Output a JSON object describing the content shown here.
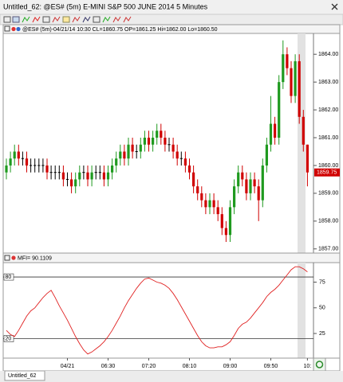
{
  "window": {
    "title": "Untitled_62: @ES# (5m) E-MINI S&P 500 JUNE 2014 5 Minutes"
  },
  "tab": "Untitled_62",
  "chart_data": [
    {
      "type": "candlestick",
      "header": "@ES# (5m)-04/21/14 10:30 CL=1860.75 OP=1861.25 Hi=1862.00 Lo=1860.50",
      "categories": [
        null,
        null,
        null,
        null,
        null,
        null,
        null,
        null,
        null,
        null,
        null,
        null,
        null,
        null,
        null,
        "04/21",
        null,
        null,
        null,
        null,
        null,
        null,
        null,
        null,
        null,
        "06:30",
        null,
        null,
        null,
        null,
        null,
        null,
        null,
        null,
        null,
        "07:20",
        null,
        null,
        null,
        null,
        null,
        null,
        null,
        null,
        null,
        "08:10",
        null,
        null,
        null,
        null,
        null,
        null,
        null,
        null,
        null,
        "09:00",
        null,
        null,
        null,
        null,
        null,
        null,
        null,
        null,
        null,
        "09:50",
        null,
        null,
        null,
        null,
        null,
        null,
        null,
        null,
        "10:"
      ],
      "open": [
        1859.75,
        1860,
        1860.25,
        1860.5,
        1860.25,
        1860.25,
        1860,
        1860,
        1860,
        1860,
        1860,
        1859.75,
        1859.75,
        1859.75,
        1859.75,
        1859.5,
        1859.5,
        1859.25,
        1859.5,
        1859.75,
        1859.75,
        1859.5,
        1859.75,
        1859.75,
        1859.75,
        1859.5,
        1859.75,
        1860,
        1860.25,
        1860.5,
        1860.25,
        1860.75,
        1860.5,
        1860.5,
        1860.75,
        1861,
        1860.75,
        1861,
        1861.25,
        1861,
        1860.75,
        1860.75,
        1860.5,
        1860.25,
        1860.25,
        1860,
        1859.75,
        1859.25,
        1859,
        1858.75,
        1858.5,
        1858.75,
        1858.5,
        1858.25,
        1857.75,
        1857.5,
        1858.5,
        1859.25,
        1859.75,
        1859.5,
        1859,
        1859.5,
        1859.25,
        1858.75,
        1860,
        1860.75,
        1861.5,
        1861,
        1863,
        1864,
        1863.5,
        1862.5,
        1863.75,
        1861.75,
        1860.75
      ],
      "high": [
        1860.25,
        1860.5,
        1860.75,
        1860.75,
        1860.5,
        1860.5,
        1860.25,
        1860.25,
        1860.25,
        1860.25,
        1860.25,
        1860,
        1860,
        1860,
        1860,
        1859.75,
        1859.75,
        1859.75,
        1860,
        1860,
        1860,
        1860,
        1860,
        1860,
        1860,
        1860,
        1860.25,
        1860.5,
        1860.75,
        1860.75,
        1861,
        1861,
        1860.75,
        1861,
        1861.25,
        1861.25,
        1861.25,
        1861.5,
        1861.5,
        1861.25,
        1861,
        1861,
        1860.75,
        1860.5,
        1860.5,
        1860.25,
        1860,
        1859.5,
        1859.25,
        1859,
        1859,
        1859,
        1858.75,
        1858.5,
        1858,
        1858.75,
        1859.5,
        1860,
        1860,
        1859.75,
        1859.75,
        1859.75,
        1859.5,
        1860.25,
        1861,
        1862.5,
        1861.75,
        1863.25,
        1864.5,
        1864.25,
        1863.75,
        1864,
        1864,
        1862,
        1860.75
      ],
      "low": [
        1859.5,
        1859.75,
        1860,
        1860,
        1860,
        1859.75,
        1859.75,
        1859.75,
        1859.75,
        1859.75,
        1859.5,
        1859.5,
        1859.5,
        1859.5,
        1859.25,
        1859.25,
        1859,
        1859,
        1859.25,
        1859.5,
        1859.25,
        1859.25,
        1859.5,
        1859.5,
        1859.25,
        1859.25,
        1859.5,
        1859.75,
        1860,
        1860,
        1860,
        1860.25,
        1860.25,
        1860.25,
        1860.5,
        1860.5,
        1860.5,
        1860.75,
        1860.75,
        1860.5,
        1860.5,
        1860.25,
        1860,
        1860,
        1859.75,
        1859.5,
        1859,
        1858.75,
        1858.5,
        1858.25,
        1858.25,
        1858.25,
        1858,
        1857.5,
        1857.25,
        1857.25,
        1858.25,
        1859,
        1859.25,
        1858.75,
        1858.75,
        1859,
        1858,
        1858.5,
        1859.75,
        1860.5,
        1860.75,
        1860.75,
        1862.75,
        1863.25,
        1862.25,
        1862.25,
        1861.5,
        1860.5,
        1859.25
      ],
      "close": [
        1860,
        1860.25,
        1860.5,
        1860.25,
        1860.25,
        1860,
        1860,
        1860,
        1860,
        1860,
        1859.75,
        1859.75,
        1859.75,
        1859.75,
        1859.5,
        1859.5,
        1859.25,
        1859.5,
        1859.75,
        1859.75,
        1859.5,
        1859.75,
        1859.75,
        1859.75,
        1859.5,
        1859.75,
        1860,
        1860.25,
        1860.5,
        1860.25,
        1860.75,
        1860.5,
        1860.5,
        1860.75,
        1861,
        1860.75,
        1861,
        1861.25,
        1861,
        1860.75,
        1860.75,
        1860.5,
        1860.25,
        1860.25,
        1860,
        1859.75,
        1859.25,
        1859,
        1858.75,
        1858.5,
        1858.75,
        1858.5,
        1858.25,
        1857.75,
        1857.5,
        1858.5,
        1859.25,
        1859.75,
        1859.5,
        1859,
        1859.5,
        1859.25,
        1858.75,
        1860,
        1860.75,
        1861.5,
        1861,
        1863,
        1864,
        1863.5,
        1862.5,
        1863.75,
        1861.75,
        1860.75,
        1859.75
      ],
      "up_color": "#1f9a1f",
      "down_color": "#d00000",
      "doji_color": "#000000",
      "ylim": [
        1856.85,
        1864.75
      ],
      "yticks": [
        {
          "value": 1857,
          "label": "1857.00"
        },
        {
          "value": 1858,
          "label": "1858.00"
        },
        {
          "value": 1859,
          "label": "1859.00"
        },
        {
          "value": 1860,
          "label": "1860.00"
        },
        {
          "value": 1861,
          "label": "1861.00"
        },
        {
          "value": 1862,
          "label": "1862.00"
        },
        {
          "value": 1863,
          "label": "1863.00"
        },
        {
          "value": 1864,
          "label": "1864.00"
        }
      ],
      "last_price": {
        "value": 1859.75,
        "label": "1859.75"
      }
    },
    {
      "type": "line",
      "header": "MFI= 90.1109",
      "color": "#e02020",
      "values": [
        28,
        24,
        22,
        28,
        35,
        42,
        47,
        50,
        55,
        60,
        64,
        67,
        60,
        52,
        45,
        38,
        30,
        22,
        15,
        9,
        5,
        7,
        10,
        13,
        17,
        22,
        28,
        35,
        42,
        50,
        57,
        63,
        69,
        74,
        78,
        79,
        77,
        75,
        74,
        72,
        69,
        64,
        58,
        51,
        44,
        37,
        30,
        23,
        17,
        13,
        11,
        11,
        12,
        12,
        14,
        17,
        23,
        30,
        34,
        36,
        40,
        45,
        50,
        55,
        61,
        65,
        68,
        72,
        77,
        82,
        87,
        90,
        90,
        88,
        85
      ],
      "ylim": [
        1,
        94
      ],
      "yticks": [
        25,
        50,
        75
      ],
      "levels": [
        {
          "value": 80,
          "label": "80"
        },
        {
          "value": 20,
          "label": "20"
        }
      ]
    }
  ]
}
